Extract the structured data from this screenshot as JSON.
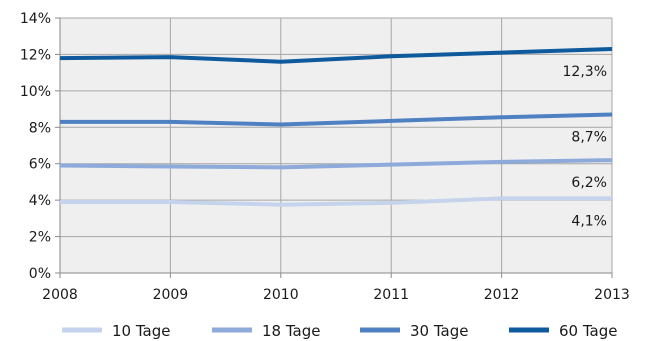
{
  "chart_data": {
    "type": "line",
    "x": [
      2008,
      2009,
      2010,
      2011,
      2012,
      2013
    ],
    "ylim": [
      0,
      14
    ],
    "yticks": [
      0,
      2,
      4,
      6,
      8,
      10,
      12,
      14
    ],
    "ytick_labels": [
      "0%",
      "2%",
      "4%",
      "6%",
      "8%",
      "10%",
      "12%",
      "14%"
    ],
    "xtick_labels": [
      "2008",
      "2009",
      "2010",
      "2011",
      "2012",
      "2013"
    ],
    "grid": true,
    "legend_position": "bottom",
    "plot_background": "#efefef",
    "series": [
      {
        "name": "10 Tage",
        "color": "#c5d3ec",
        "values": [
          3.9,
          3.9,
          3.75,
          3.85,
          4.1,
          4.1
        ],
        "end_label": "4,1%"
      },
      {
        "name": "18 Tage",
        "color": "#8eaadb",
        "values": [
          5.9,
          5.85,
          5.8,
          5.95,
          6.1,
          6.2
        ],
        "end_label": "6,2%"
      },
      {
        "name": "30 Tage",
        "color": "#4f81c2",
        "values": [
          8.3,
          8.3,
          8.15,
          8.35,
          8.55,
          8.7
        ],
        "end_label": "8,7%"
      },
      {
        "name": "60 Tage",
        "color": "#0f5a9c",
        "values": [
          11.8,
          11.85,
          11.6,
          11.9,
          12.1,
          12.3
        ],
        "end_label": "12,3%"
      }
    ]
  }
}
